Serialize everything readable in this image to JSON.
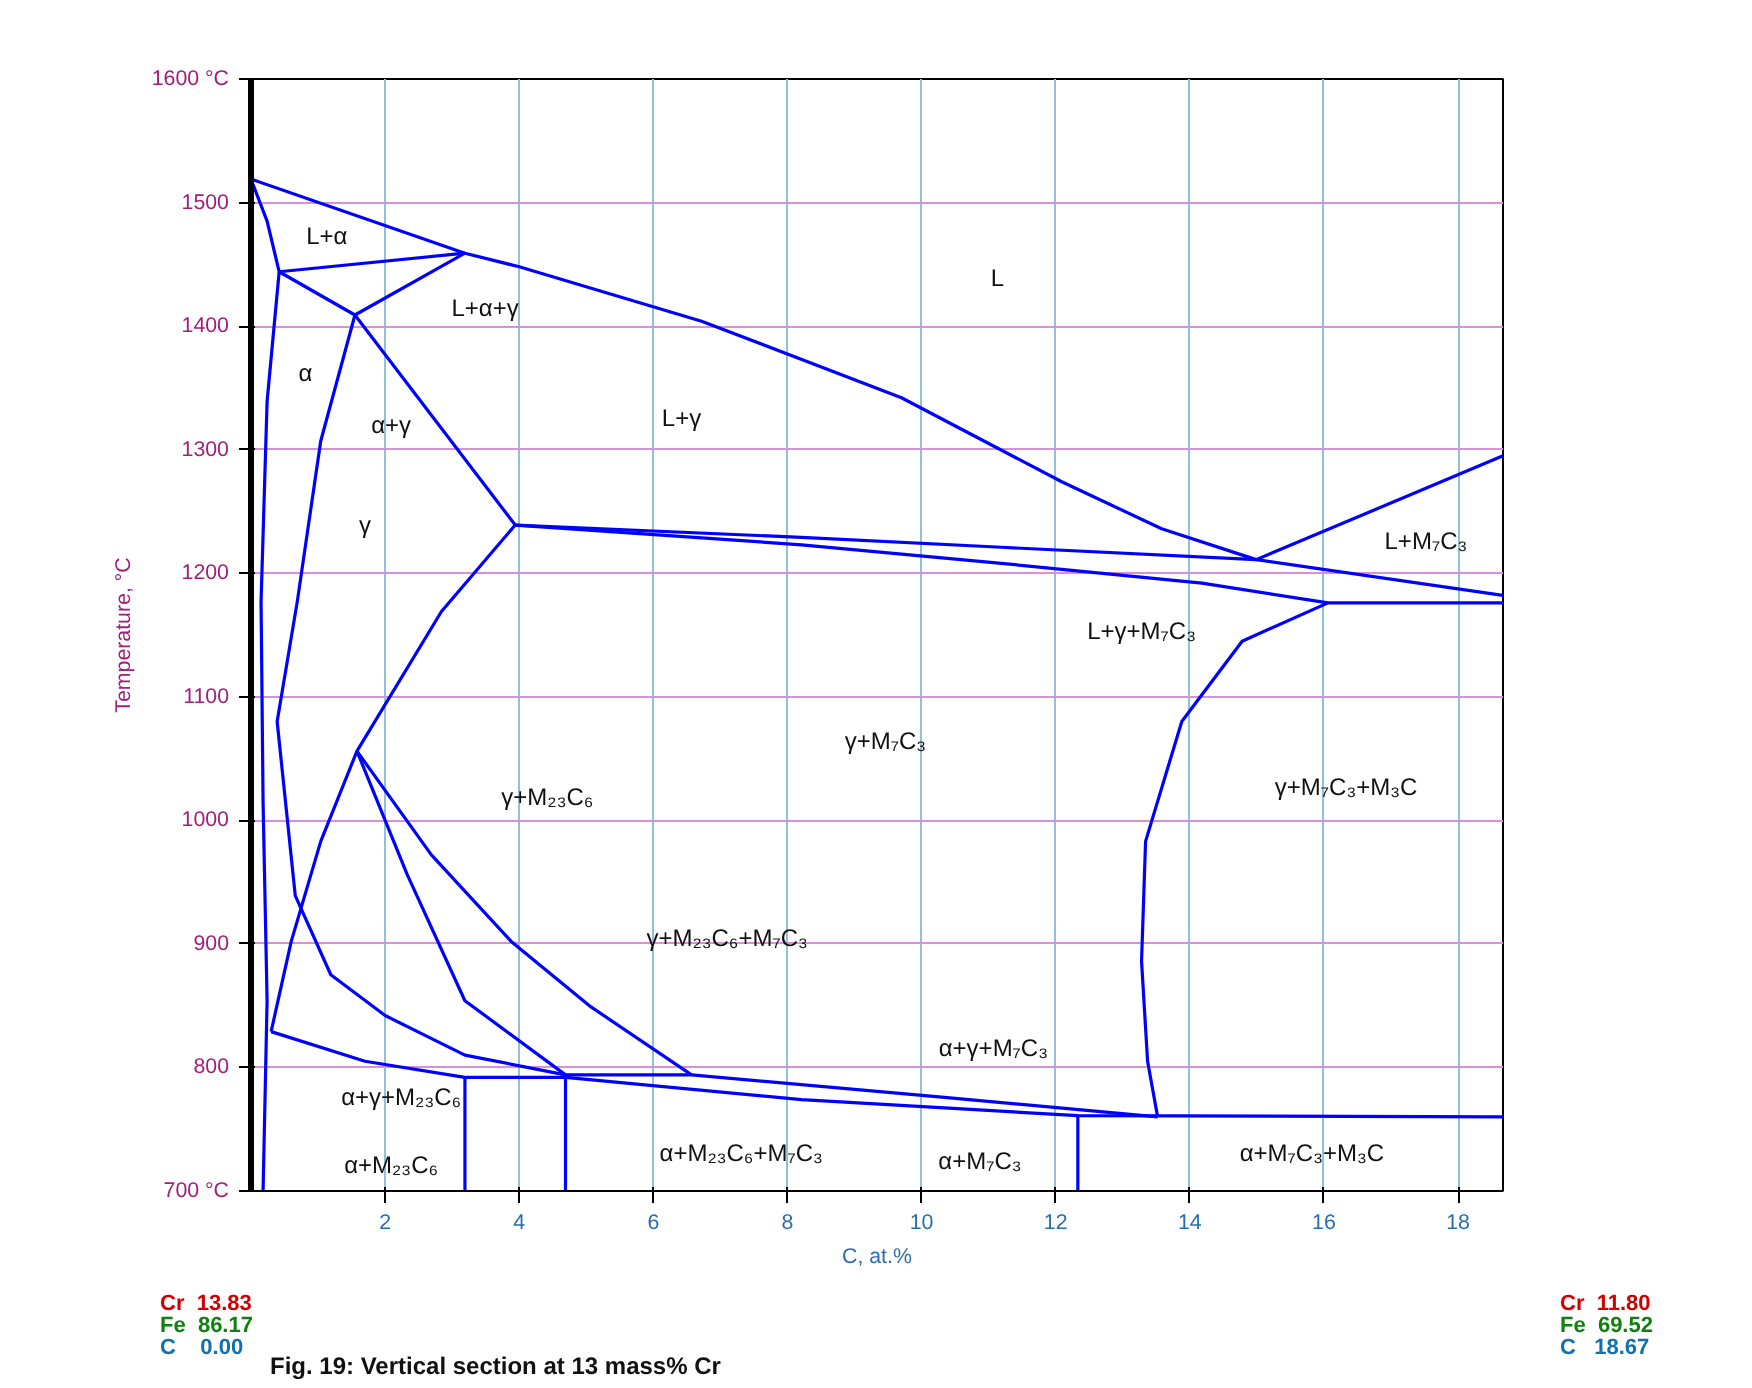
{
  "chart_data": {
    "type": "line",
    "xlabel": "C, at.%",
    "ylabel": "Temperature, °C",
    "xlim": [
      0,
      18.67
    ],
    "ylim": [
      700,
      1600
    ],
    "xticks": [
      2,
      4,
      6,
      8,
      10,
      12,
      14,
      16,
      18
    ],
    "yticks": [
      {
        "value": 700,
        "label": "700 °C"
      },
      800,
      900,
      1000,
      1100,
      1200,
      1300,
      1400,
      1500,
      {
        "value": 1600,
        "label": "1600 °C"
      }
    ],
    "grid": true,
    "marker": "none",
    "line_style": "solid",
    "series": [
      {
        "color": "#0000ff",
        "x": [
          0,
          3.19,
          4,
          6.72,
          9.7,
          12.09,
          13.58,
          14.99,
          18.67
        ],
        "values": [
          1519,
          1459,
          1448,
          1404,
          1342,
          1274,
          1236,
          1211,
          1295
        ]
      },
      {
        "color": "#0000ff",
        "x": [
          0,
          0.24,
          0.42,
          0.24,
          0.15,
          0.18,
          0.24,
          0.18
        ],
        "values": [
          1519,
          1485,
          1444,
          1339,
          1177,
          1015,
          854,
          700
        ]
      },
      {
        "color": "#0000ff",
        "x": [
          0.42,
          3.19
        ],
        "values": [
          1444,
          1459
        ]
      },
      {
        "color": "#0000ff",
        "x": [
          0.42,
          1.55,
          3.19
        ],
        "values": [
          1444,
          1409,
          1459
        ]
      },
      {
        "color": "#0000ff",
        "x": [
          1.55,
          3.94
        ],
        "values": [
          1409,
          1239
        ]
      },
      {
        "color": "#0000ff",
        "x": [
          3.94,
          8.21,
          11.19,
          14.99,
          18.67
        ],
        "values": [
          1239,
          1229,
          1221,
          1211,
          1182
        ]
      },
      {
        "color": "#0000ff",
        "x": [
          3.94,
          8.21,
          11.19,
          14.18,
          16.06,
          18.67
        ],
        "values": [
          1239,
          1223,
          1208,
          1192,
          1176,
          1176
        ]
      },
      {
        "color": "#0000ff",
        "x": [
          16.06,
          14.78,
          13.88,
          13.34,
          13.28,
          13.37,
          13.52
        ],
        "values": [
          1176,
          1145,
          1080,
          983,
          886,
          805,
          760
        ]
      },
      {
        "color": "#0000ff",
        "x": [
          1.55,
          1.04,
          0.69,
          0.39,
          0.66,
          1.19,
          2.0,
          3.19,
          4.69,
          6.57,
          10.3,
          13.52
        ],
        "values": [
          1409,
          1307,
          1177,
          1080,
          939,
          875,
          842,
          810,
          794,
          794,
          776,
          760
        ]
      },
      {
        "color": "#0000ff",
        "x": [
          3.94,
          2.84,
          1.58,
          1.04,
          0.6,
          0.3
        ],
        "values": [
          1239,
          1169,
          1056,
          983,
          902,
          829
        ]
      },
      {
        "color": "#0000ff",
        "x": [
          1.58,
          2.33,
          3.19,
          4.69
        ],
        "values": [
          1056,
          956,
          854,
          794
        ]
      },
      {
        "color": "#0000ff",
        "x": [
          1.58,
          2.69,
          3.88,
          5.07,
          6.57
        ],
        "values": [
          1056,
          972,
          902,
          849,
          794
        ]
      },
      {
        "color": "#0000ff",
        "x": [
          0.3,
          1.7,
          3.19,
          4.69,
          8.21,
          12.33,
          18.67
        ],
        "values": [
          829,
          805,
          792,
          792,
          774,
          761,
          760
        ]
      },
      {
        "color": "#0000ff",
        "x": [
          3.19,
          3.19
        ],
        "values": [
          792,
          700
        ]
      },
      {
        "color": "#0000ff",
        "x": [
          4.69,
          4.69
        ],
        "values": [
          794,
          700
        ]
      },
      {
        "color": "#0000ff",
        "x": [
          12.33,
          12.33
        ],
        "values": [
          761,
          700
        ]
      }
    ],
    "annotations": [
      "L+α",
      "L",
      "L+α+γ",
      "α",
      "α+γ",
      "L+γ",
      "γ",
      "L+M₇C₃",
      "L+γ+M₇C₃",
      "γ+M₇C₃",
      "γ+M₂₃C₆",
      "γ+M₇C₃+M₃C",
      "γ+M₂₃C₆+M₇C₃",
      "α+γ+M₇C₃",
      "α+γ+M₂₃C₆",
      "α+M₂₃C₆",
      "α+M₂₃C₆+M₇C₃",
      "α+M₇C₃",
      "α+M₇C₃+M₃C",
      "Cr  13.83",
      "Fe  86.17",
      "C    0.00",
      "Cr  11.80",
      "Fe  69.52",
      "C   18.67",
      "Fig. 19: Vertical section at 13 mass% Cr"
    ]
  }
}
